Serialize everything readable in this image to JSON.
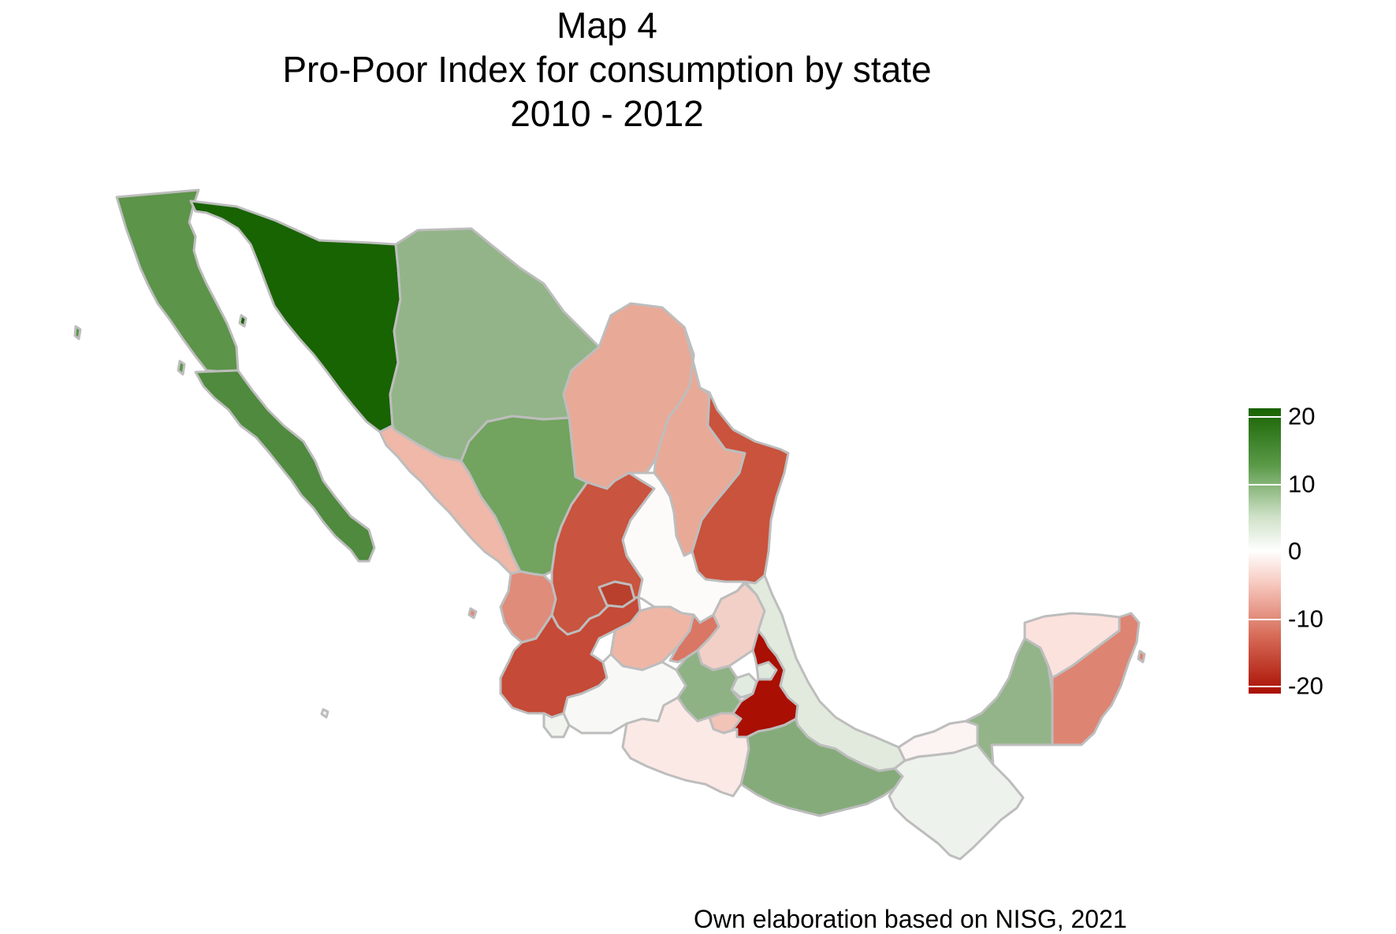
{
  "title": {
    "line1": "Map 4",
    "line2": "Pro-Poor Index for consumption by state",
    "line3": "2010 - 2012"
  },
  "legend": {
    "ticks": [
      "20",
      "10",
      "0",
      "-10",
      "-20"
    ],
    "scale_min": -20,
    "scale_max": 20,
    "colors": {
      "high": "#186302",
      "mid": "#ffffff",
      "low": "#a90f02"
    }
  },
  "caption": "Own elaboration based on NISG, 2021",
  "states": [
    {
      "name": "baja-california",
      "value": 12,
      "color": "#5c9449"
    },
    {
      "name": "baja-california-sur",
      "value": 13,
      "color": "#4f8a3e"
    },
    {
      "name": "sonora",
      "value": 21,
      "color": "#186302"
    },
    {
      "name": "chihuahua",
      "value": 8,
      "color": "#93b488"
    },
    {
      "name": "coahuila",
      "value": -8,
      "color": "#e9a997"
    },
    {
      "name": "nuevo-leon",
      "value": -8,
      "color": "#e9a997"
    },
    {
      "name": "tamaulipas",
      "value": -14,
      "color": "#c9533d"
    },
    {
      "name": "sinaloa",
      "value": -6,
      "color": "#efb8a8"
    },
    {
      "name": "durango",
      "value": 11,
      "color": "#72a35f"
    },
    {
      "name": "zacatecas",
      "value": -14,
      "color": "#c9543f"
    },
    {
      "name": "san-luis-potosi",
      "value": 0.5,
      "color": "#fdfbfa"
    },
    {
      "name": "nayarit",
      "value": -9,
      "color": "#df8c7a"
    },
    {
      "name": "aguascalientes",
      "value": -17,
      "color": "#b9402c"
    },
    {
      "name": "jalisco",
      "value": -15,
      "color": "#c54a37"
    },
    {
      "name": "guanajuato",
      "value": -7,
      "color": "#efb6a6"
    },
    {
      "name": "queretaro",
      "value": -11,
      "color": "#d97664"
    },
    {
      "name": "hidalgo",
      "value": -5,
      "color": "#f3d0c7"
    },
    {
      "name": "colima",
      "value": 1,
      "color": "#f1f4ef"
    },
    {
      "name": "michoacan",
      "value": 1,
      "color": "#f8f8f6"
    },
    {
      "name": "mexico",
      "value": 8,
      "color": "#8fb285"
    },
    {
      "name": "cdmx",
      "value": 3,
      "color": "#e2ebdf"
    },
    {
      "name": "morelos",
      "value": -6,
      "color": "#f2c3b7"
    },
    {
      "name": "tlaxcala",
      "value": 3,
      "color": "#dfe8dc"
    },
    {
      "name": "puebla",
      "value": -21,
      "color": "#a90f02"
    },
    {
      "name": "veracruz",
      "value": 3,
      "color": "#e1eadd"
    },
    {
      "name": "guerrero",
      "value": -2,
      "color": "#fbe9e5"
    },
    {
      "name": "oaxaca",
      "value": 9,
      "color": "#86ab7b"
    },
    {
      "name": "chiapas",
      "value": 1,
      "color": "#eef2ec"
    },
    {
      "name": "tabasco",
      "value": -1,
      "color": "#fcf4f2"
    },
    {
      "name": "campeche",
      "value": 8,
      "color": "#93b488"
    },
    {
      "name": "yucatan",
      "value": -3,
      "color": "#fbe2dd"
    },
    {
      "name": "quintana-roo",
      "value": -10,
      "color": "#de8473"
    }
  ]
}
